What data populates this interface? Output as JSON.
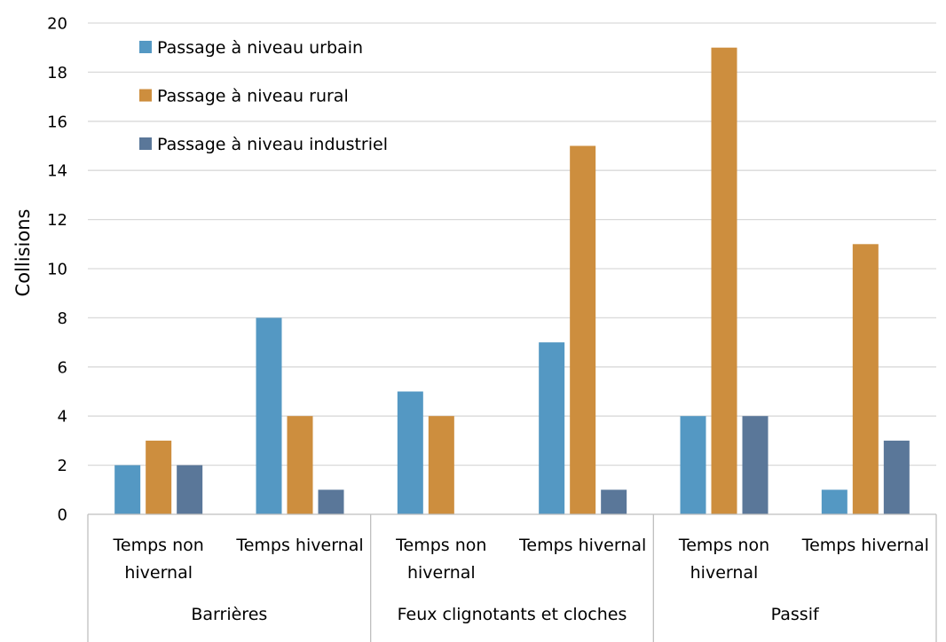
{
  "chart_data": {
    "type": "bar",
    "ylabel": "Collisions",
    "ylim": [
      0,
      20
    ],
    "yticks": [
      0,
      2,
      4,
      6,
      8,
      10,
      12,
      14,
      16,
      18,
      20
    ],
    "grid": true,
    "legend_position": "top-left",
    "groups": [
      "Barrières",
      "Feux clignotants et cloches",
      "Passif"
    ],
    "categories": [
      {
        "group": 0,
        "label": [
          "Temps non",
          "hivernal"
        ]
      },
      {
        "group": 0,
        "label": [
          "Temps hivernal"
        ]
      },
      {
        "group": 1,
        "label": [
          "Temps non",
          "hivernal"
        ]
      },
      {
        "group": 1,
        "label": [
          "Temps hivernal"
        ]
      },
      {
        "group": 2,
        "label": [
          "Temps non",
          "hivernal"
        ]
      },
      {
        "group": 2,
        "label": [
          "Temps hivernal"
        ]
      }
    ],
    "series": [
      {
        "name": "Passage à niveau urbain",
        "color": "#5498c3",
        "values": [
          2,
          8,
          5,
          7,
          4,
          1
        ]
      },
      {
        "name": "Passage à niveau rural",
        "color": "#cd8e3e",
        "values": [
          3,
          4,
          4,
          15,
          19,
          11
        ]
      },
      {
        "name": "Passage à niveau industriel",
        "color": "#5a7799",
        "values": [
          2,
          1,
          0,
          1,
          4,
          3
        ]
      }
    ]
  }
}
